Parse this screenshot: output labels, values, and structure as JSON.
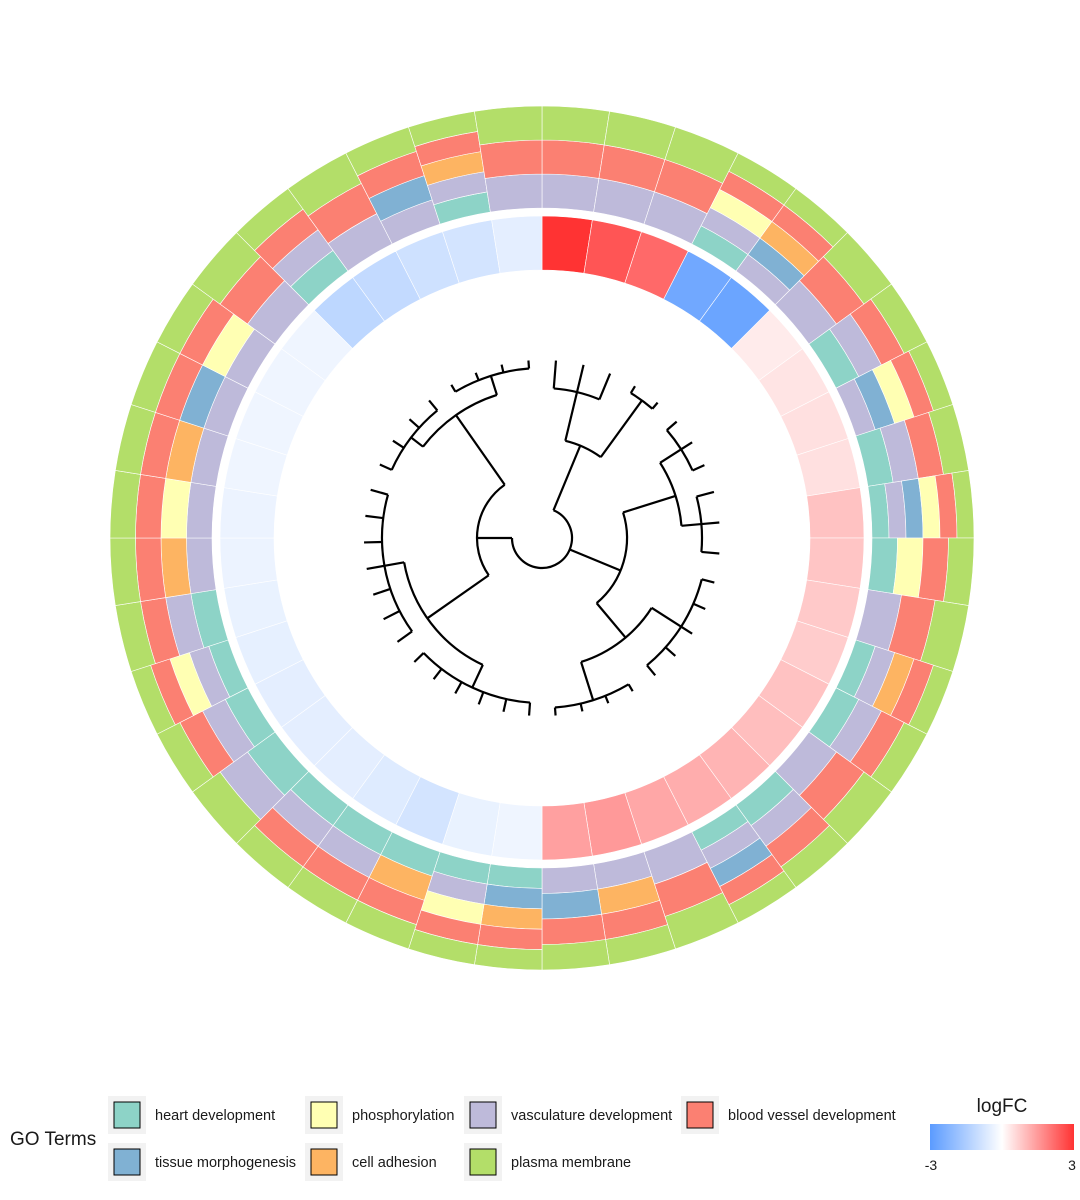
{
  "chart_data": {
    "type": "circular-heatmap-dendrogram",
    "rings_inner_to_outer": [
      "logFC",
      "heart development",
      "tissue morphogenesis",
      "phosphorylation",
      "cell adhesion",
      "vasculature development",
      "blood vessel development",
      "plasma membrane"
    ],
    "genes": [
      {
        "logFC": 3.0,
        "go": [
          0,
          0,
          0,
          0,
          1,
          1,
          1
        ]
      },
      {
        "logFC": 2.5,
        "go": [
          0,
          0,
          0,
          0,
          1,
          1,
          1
        ]
      },
      {
        "logFC": 2.2,
        "go": [
          0,
          0,
          0,
          0,
          1,
          1,
          1
        ]
      },
      {
        "logFC": -2.6,
        "go": [
          1,
          0,
          1,
          0,
          1,
          1,
          1
        ]
      },
      {
        "logFC": -2.7,
        "go": [
          0,
          1,
          0,
          1,
          1,
          1,
          1
        ]
      },
      {
        "logFC": 0.3,
        "go": [
          0,
          0,
          0,
          0,
          1,
          1,
          1
        ]
      },
      {
        "logFC": 0.4,
        "go": [
          1,
          0,
          0,
          0,
          1,
          1,
          1
        ]
      },
      {
        "logFC": 0.45,
        "go": [
          0,
          1,
          1,
          0,
          1,
          1,
          1
        ]
      },
      {
        "logFC": 0.45,
        "go": [
          1,
          0,
          0,
          0,
          1,
          1,
          1
        ]
      },
      {
        "logFC": 0.9,
        "go": [
          1,
          1,
          1,
          0,
          1,
          1,
          1
        ]
      },
      {
        "logFC": 0.85,
        "go": [
          1,
          0,
          1,
          0,
          0,
          1,
          1
        ]
      },
      {
        "logFC": 0.8,
        "go": [
          0,
          0,
          0,
          0,
          1,
          1,
          1
        ]
      },
      {
        "logFC": 0.75,
        "go": [
          1,
          0,
          0,
          1,
          1,
          1,
          1
        ]
      },
      {
        "logFC": 0.9,
        "go": [
          1,
          0,
          0,
          0,
          1,
          1,
          1
        ]
      },
      {
        "logFC": 0.95,
        "go": [
          0,
          0,
          0,
          0,
          1,
          1,
          1
        ]
      },
      {
        "logFC": 1.1,
        "go": [
          1,
          0,
          0,
          0,
          1,
          1,
          1
        ]
      },
      {
        "logFC": 1.2,
        "go": [
          1,
          1,
          0,
          0,
          1,
          1,
          1
        ]
      },
      {
        "logFC": 1.3,
        "go": [
          0,
          0,
          0,
          0,
          1,
          1,
          1
        ]
      },
      {
        "logFC": 1.5,
        "go": [
          0,
          0,
          0,
          1,
          1,
          1,
          1
        ]
      },
      {
        "logFC": 1.4,
        "go": [
          0,
          1,
          0,
          0,
          1,
          1,
          1
        ]
      },
      {
        "logFC": -0.3,
        "go": [
          1,
          1,
          0,
          1,
          0,
          1,
          1
        ]
      },
      {
        "logFC": -0.4,
        "go": [
          1,
          0,
          1,
          0,
          1,
          1,
          1
        ]
      },
      {
        "logFC": -0.8,
        "go": [
          1,
          0,
          0,
          1,
          0,
          1,
          1
        ]
      },
      {
        "logFC": -0.6,
        "go": [
          1,
          0,
          0,
          0,
          1,
          1,
          1
        ]
      },
      {
        "logFC": -0.5,
        "go": [
          1,
          0,
          0,
          0,
          1,
          1,
          1
        ]
      },
      {
        "logFC": -0.5,
        "go": [
          1,
          0,
          0,
          0,
          1,
          0,
          1
        ]
      },
      {
        "logFC": -0.5,
        "go": [
          1,
          0,
          0,
          0,
          1,
          1,
          1
        ]
      },
      {
        "logFC": -0.45,
        "go": [
          1,
          0,
          1,
          0,
          1,
          1,
          1
        ]
      },
      {
        "logFC": -0.4,
        "go": [
          1,
          0,
          0,
          0,
          1,
          1,
          1
        ]
      },
      {
        "logFC": -0.35,
        "go": [
          0,
          0,
          0,
          1,
          1,
          1,
          1
        ]
      },
      {
        "logFC": -0.35,
        "go": [
          0,
          0,
          1,
          0,
          1,
          1,
          1
        ]
      },
      {
        "logFC": -0.3,
        "go": [
          0,
          0,
          0,
          1,
          1,
          1,
          1
        ]
      },
      {
        "logFC": -0.3,
        "go": [
          0,
          1,
          0,
          0,
          1,
          1,
          1
        ]
      },
      {
        "logFC": -0.3,
        "go": [
          0,
          0,
          1,
          0,
          1,
          1,
          1
        ]
      },
      {
        "logFC": -0.3,
        "go": [
          0,
          0,
          0,
          0,
          1,
          1,
          1
        ]
      },
      {
        "logFC": -1.2,
        "go": [
          1,
          0,
          0,
          0,
          1,
          1,
          1
        ]
      },
      {
        "logFC": -1.1,
        "go": [
          0,
          0,
          0,
          0,
          1,
          1,
          1
        ]
      },
      {
        "logFC": -0.9,
        "go": [
          0,
          1,
          0,
          0,
          1,
          1,
          1
        ]
      },
      {
        "logFC": -0.8,
        "go": [
          1,
          0,
          0,
          1,
          1,
          1,
          1
        ]
      },
      {
        "logFC": -0.5,
        "go": [
          0,
          0,
          0,
          0,
          1,
          1,
          1
        ]
      }
    ],
    "legend": {
      "title": "GO Terms",
      "items": [
        {
          "label": "heart development",
          "color": "#8DD3C7"
        },
        {
          "label": "phosphorylation",
          "color": "#FFFFB3"
        },
        {
          "label": "vasculature development",
          "color": "#BEBADA"
        },
        {
          "label": "blood vessel development",
          "color": "#FB8072"
        },
        {
          "label": "tissue morphogenesis",
          "color": "#80B1D3"
        },
        {
          "label": "cell adhesion",
          "color": "#FDB462"
        },
        {
          "label": "plasma membrane",
          "color": "#B3DE69"
        }
      ]
    },
    "colorbar": {
      "title": "logFC",
      "min": -3,
      "max": 3,
      "min_label": "-3",
      "max_label": "3",
      "low_color": "#5B9BFF",
      "mid_color": "#FFFFFF",
      "high_color": "#FF3333"
    }
  }
}
